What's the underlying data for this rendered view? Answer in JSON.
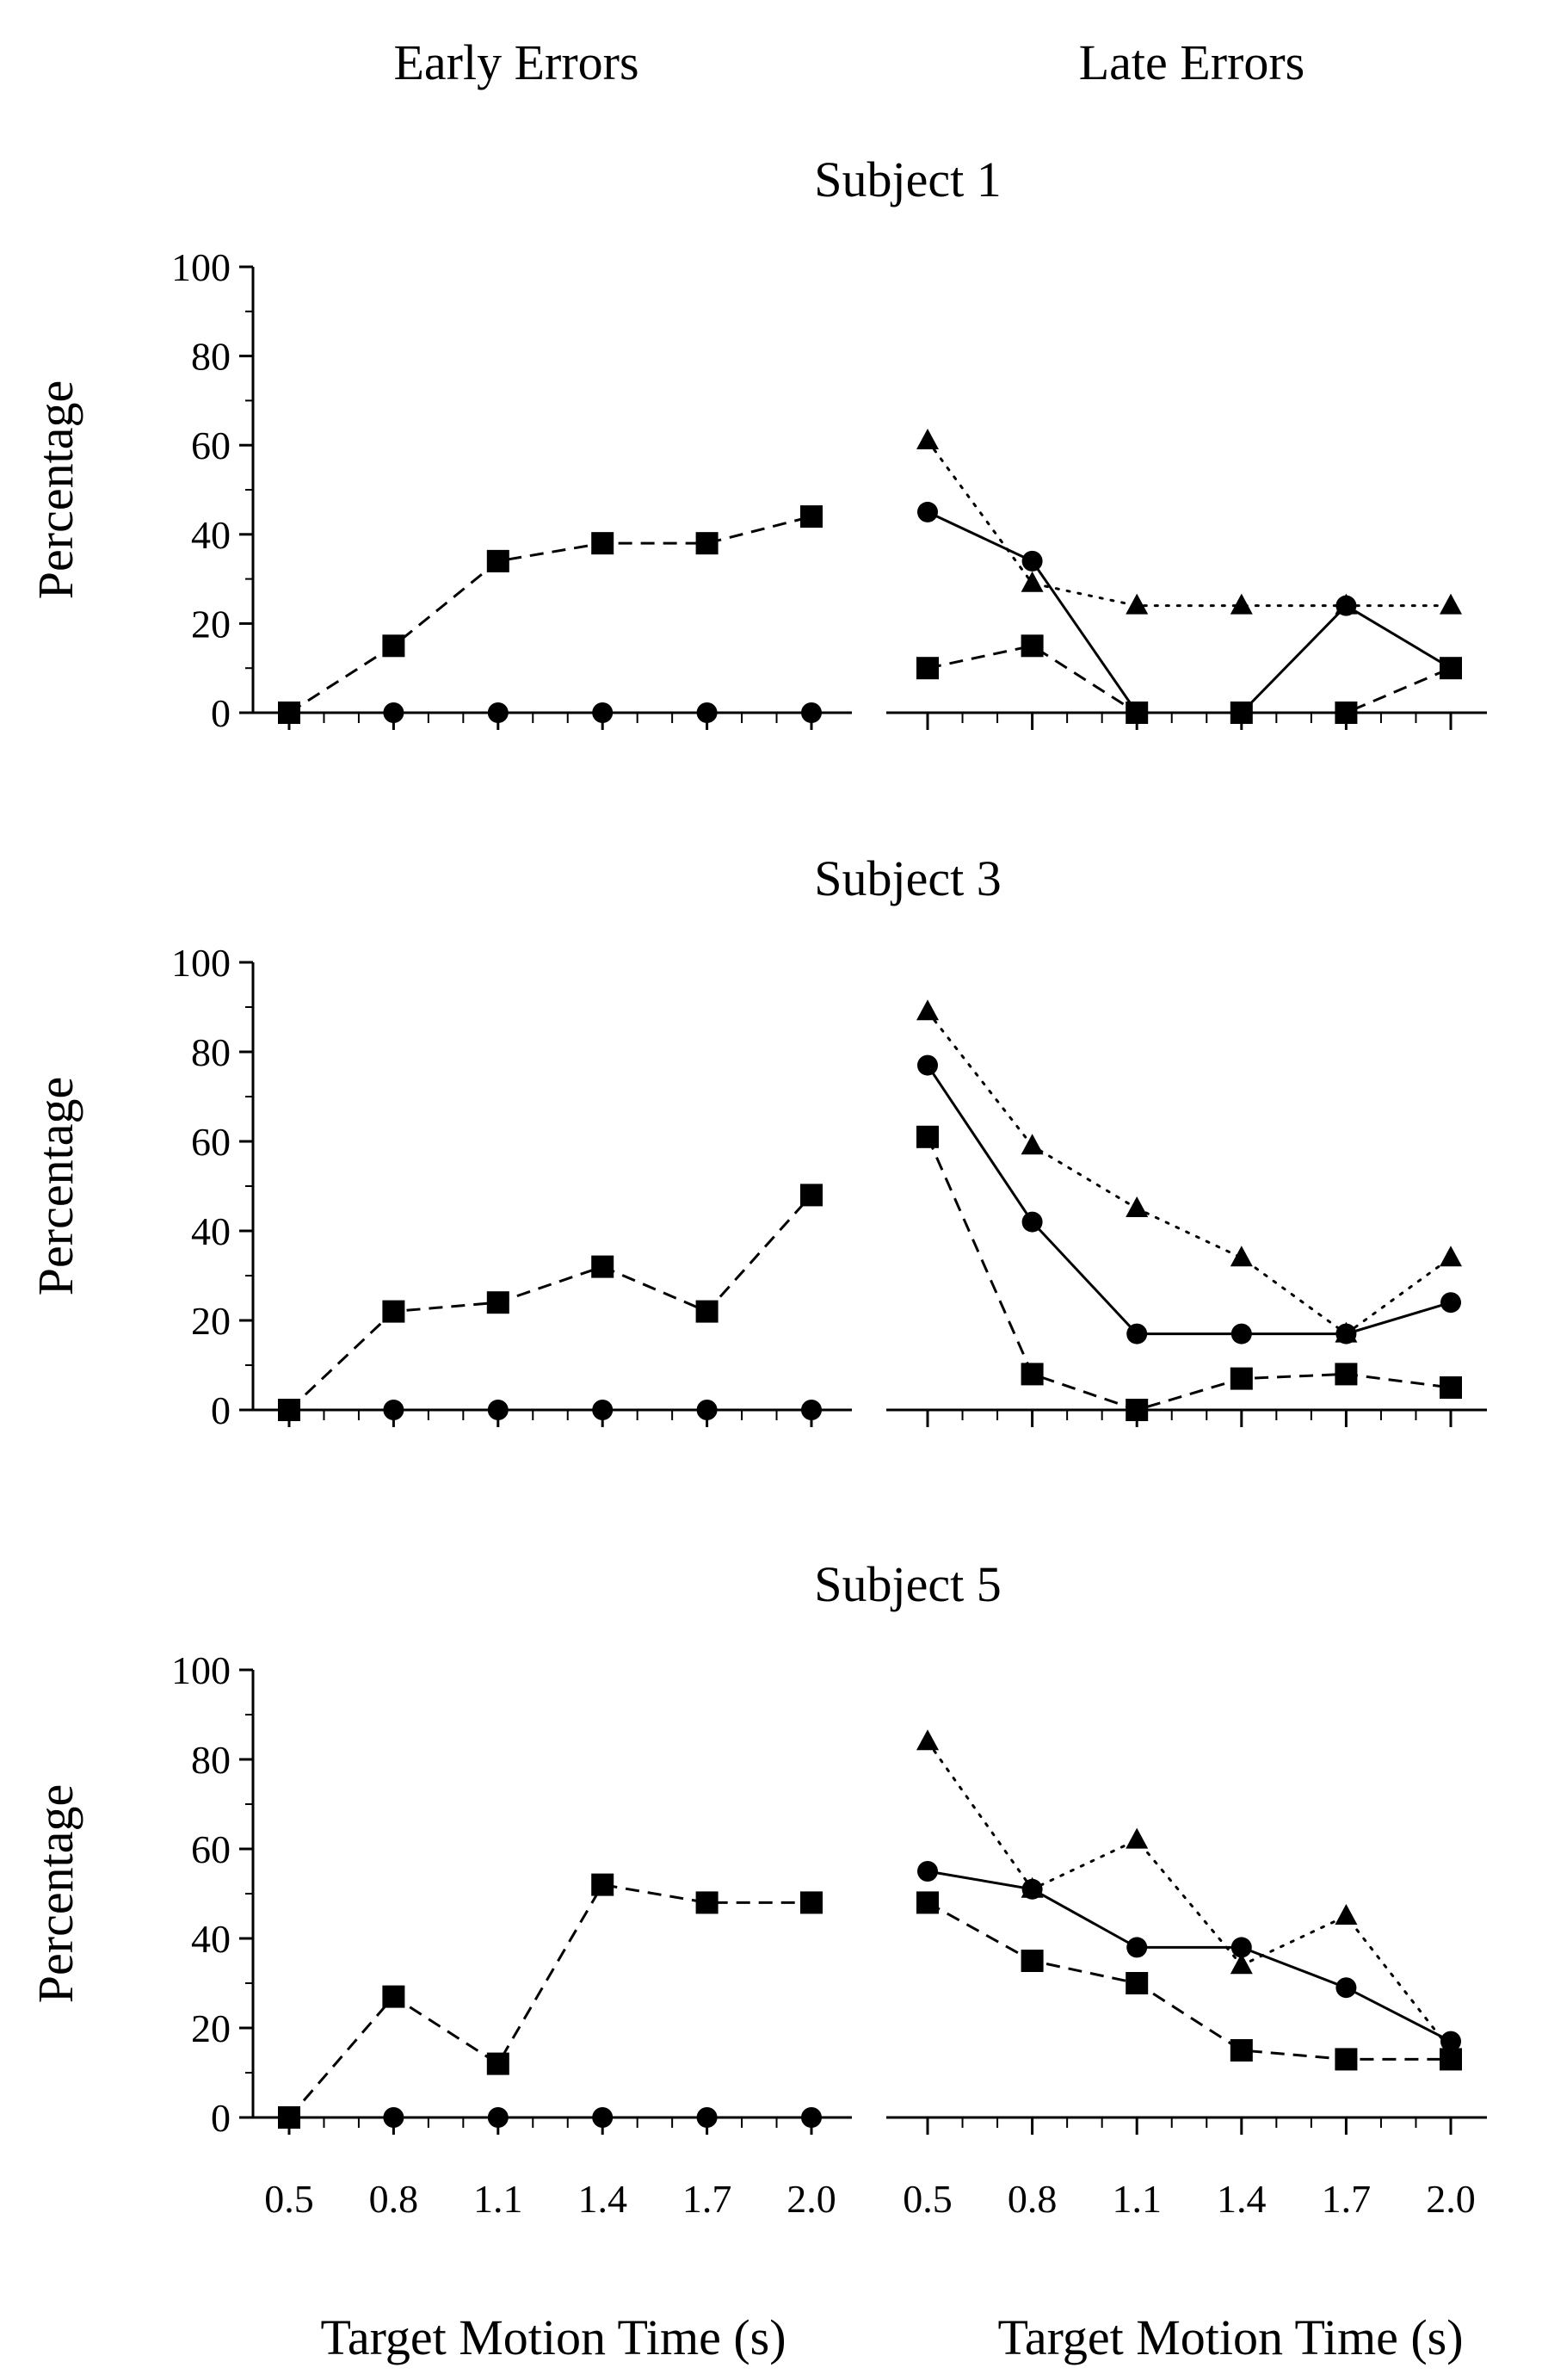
{
  "column_titles": [
    "Early Errors",
    "Late Errors"
  ],
  "x_axis_label": "Target Motion Time (s)",
  "y_axis_label": "Percentage",
  "chart_data": [
    {
      "type": "line",
      "title": "Subject 1",
      "panels": [
        {
          "name": "Early Errors",
          "x": [
            0.5,
            0.8,
            1.1,
            1.4,
            1.7,
            2.0
          ],
          "series": [
            {
              "marker": "square",
              "line": "dashed",
              "values": [
                0,
                15,
                34,
                38,
                38,
                44
              ]
            },
            {
              "marker": "circle",
              "line": "solid",
              "values": [
                0,
                0,
                0,
                0,
                0,
                0
              ]
            }
          ]
        },
        {
          "name": "Late Errors",
          "x": [
            0.5,
            0.8,
            1.1,
            1.4,
            1.7,
            2.0
          ],
          "series": [
            {
              "marker": "triangle",
              "line": "dotted",
              "values": [
                61,
                29,
                24,
                24,
                24,
                24
              ]
            },
            {
              "marker": "circle",
              "line": "solid",
              "values": [
                45,
                34,
                0,
                0,
                24,
                10
              ]
            },
            {
              "marker": "square",
              "line": "dashed",
              "values": [
                10,
                15,
                0,
                0,
                0,
                10
              ]
            }
          ]
        }
      ],
      "ylim": [
        0,
        100
      ],
      "yticks": [
        "0",
        "20",
        "40",
        "60",
        "80",
        "100"
      ],
      "xticks": [
        "0.5",
        "0.8",
        "1.1",
        "1.4",
        "1.7",
        "2.0"
      ]
    },
    {
      "type": "line",
      "title": "Subject 3",
      "panels": [
        {
          "name": "Early Errors",
          "x": [
            0.5,
            0.8,
            1.1,
            1.4,
            1.7,
            2.0
          ],
          "series": [
            {
              "marker": "square",
              "line": "dashed",
              "values": [
                0,
                22,
                24,
                32,
                22,
                48
              ]
            },
            {
              "marker": "circle",
              "line": "solid",
              "values": [
                0,
                0,
                0,
                0,
                0,
                0
              ]
            }
          ]
        },
        {
          "name": "Late Errors",
          "x": [
            0.5,
            0.8,
            1.1,
            1.4,
            1.7,
            2.0
          ],
          "series": [
            {
              "marker": "triangle",
              "line": "dotted",
              "values": [
                89,
                59,
                45,
                34,
                17,
                34
              ]
            },
            {
              "marker": "circle",
              "line": "solid",
              "values": [
                77,
                42,
                17,
                17,
                17,
                24
              ]
            },
            {
              "marker": "square",
              "line": "dashed",
              "values": [
                61,
                8,
                0,
                7,
                8,
                5
              ]
            }
          ]
        }
      ],
      "ylim": [
        0,
        100
      ],
      "yticks": [
        "0",
        "20",
        "40",
        "60",
        "80",
        "100"
      ],
      "xticks": [
        "0.5",
        "0.8",
        "1.1",
        "1.4",
        "1.7",
        "2.0"
      ]
    },
    {
      "type": "line",
      "title": "Subject 5",
      "panels": [
        {
          "name": "Early Errors",
          "x": [
            0.5,
            0.8,
            1.1,
            1.4,
            1.7,
            2.0
          ],
          "series": [
            {
              "marker": "square",
              "line": "dashed",
              "values": [
                0,
                27,
                12,
                52,
                48,
                48
              ]
            },
            {
              "marker": "circle",
              "line": "solid",
              "values": [
                0,
                0,
                0,
                0,
                0,
                0
              ]
            }
          ]
        },
        {
          "name": "Late Errors",
          "x": [
            0.5,
            0.8,
            1.1,
            1.4,
            1.7,
            2.0
          ],
          "series": [
            {
              "marker": "triangle",
              "line": "dotted",
              "values": [
                84,
                51,
                62,
                34,
                45,
                15
              ]
            },
            {
              "marker": "circle",
              "line": "solid",
              "values": [
                55,
                51,
                38,
                38,
                29,
                17
              ]
            },
            {
              "marker": "square",
              "line": "dashed",
              "values": [
                48,
                35,
                30,
                15,
                13,
                13
              ]
            }
          ]
        }
      ],
      "ylim": [
        0,
        100
      ],
      "yticks": [
        "0",
        "20",
        "40",
        "60",
        "80",
        "100"
      ],
      "xticks": [
        "0.5",
        "0.8",
        "1.1",
        "1.4",
        "1.7",
        "2.0"
      ]
    }
  ]
}
